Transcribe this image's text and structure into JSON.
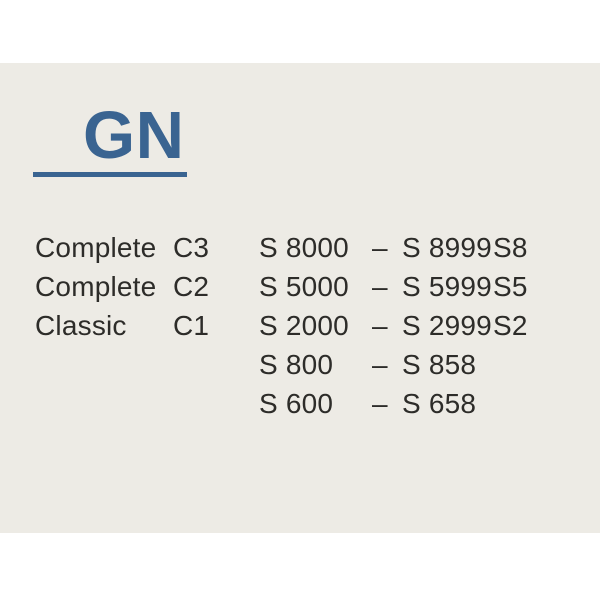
{
  "page": {
    "title": "GN"
  },
  "table": {
    "rows": [
      {
        "name": "Complete",
        "code": "C3",
        "range_start": "S 8000",
        "dash": "–",
        "range_end": "S 8999",
        "series": "S8"
      },
      {
        "name": "Complete",
        "code": "C2",
        "range_start": "S 5000",
        "dash": "–",
        "range_end": "S 5999",
        "series": "S5"
      },
      {
        "name": "Classic",
        "code": "C1",
        "range_start": "S 2000",
        "dash": "–",
        "range_end": "S 2999",
        "series": "S2"
      },
      {
        "name": "",
        "code": "",
        "range_start": "S 800",
        "dash": "–",
        "range_end": "S 858",
        "series": ""
      },
      {
        "name": "",
        "code": "",
        "range_start": "S 600",
        "dash": "–",
        "range_end": "S 658",
        "series": ""
      }
    ]
  },
  "colors": {
    "accent_blue": "#3a6491",
    "background_cream": "#edebe5",
    "text_dark": "#2d2c29",
    "page_white": "#ffffff"
  }
}
